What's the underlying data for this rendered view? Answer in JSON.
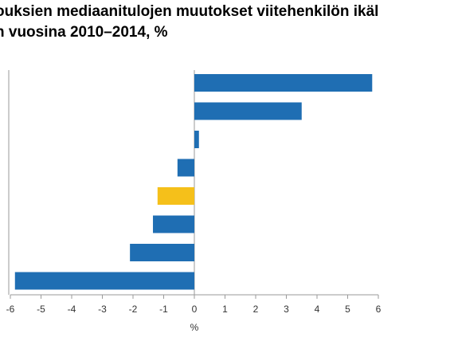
{
  "title": {
    "line1": "ouksien mediaanitulojen muutokset viitehenkilön ikäl",
    "line2": "n vuosina 2010–2014, %"
  },
  "colors": {
    "bar": "#1f6eb3",
    "highlight": "#f5c01a",
    "axis": "#9a9a9a",
    "text": "#333333"
  },
  "chart_data": {
    "type": "bar",
    "orientation": "horizontal",
    "xlabel": "%",
    "xlim": [
      -6,
      6
    ],
    "xticks": [
      -6,
      -5,
      -4,
      -3,
      -2,
      -1,
      0,
      1,
      2,
      3,
      4,
      5,
      6
    ],
    "grid": false,
    "values": [
      5.8,
      3.5,
      0.15,
      -0.55,
      -1.2,
      -1.35,
      -2.1,
      -5.85
    ],
    "highlight_index": 4
  }
}
